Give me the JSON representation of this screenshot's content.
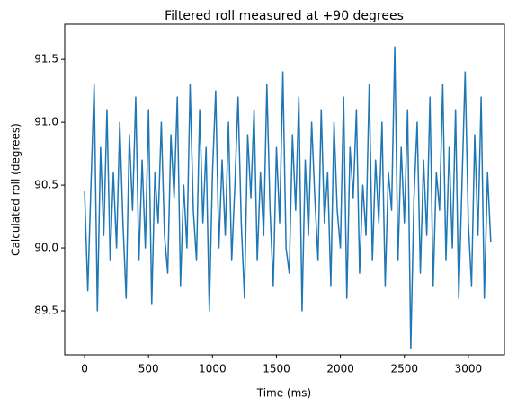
{
  "chart_data": {
    "type": "line",
    "title": "Filtered roll measured at +90 degrees",
    "xlabel": "Time (ms)",
    "ylabel": "Calculated roll (degrees)",
    "xlim": [
      -155,
      3282
    ],
    "ylim": [
      89.15,
      91.78
    ],
    "xticks": [
      0,
      500,
      1000,
      1500,
      2000,
      2500,
      3000
    ],
    "yticks": [
      89.5,
      {
        "value": 90.0,
        "label": "90.0"
      },
      90.5,
      {
        "value": 91.0,
        "label": "91.0"
      },
      91.5
    ],
    "x": [
      0,
      25,
      50,
      75,
      100,
      125,
      150,
      175,
      200,
      225,
      250,
      275,
      300,
      325,
      350,
      375,
      400,
      425,
      450,
      475,
      500,
      525,
      550,
      575,
      600,
      625,
      650,
      675,
      700,
      725,
      750,
      775,
      800,
      825,
      850,
      875,
      900,
      925,
      950,
      975,
      1000,
      1025,
      1050,
      1075,
      1100,
      1125,
      1150,
      1175,
      1200,
      1225,
      1250,
      1275,
      1300,
      1325,
      1350,
      1375,
      1400,
      1425,
      1450,
      1475,
      1500,
      1525,
      1550,
      1575,
      1600,
      1625,
      1650,
      1675,
      1700,
      1725,
      1750,
      1775,
      1800,
      1825,
      1850,
      1875,
      1900,
      1925,
      1950,
      1975,
      2000,
      2025,
      2050,
      2075,
      2100,
      2125,
      2150,
      2175,
      2200,
      2225,
      2250,
      2275,
      2300,
      2325,
      2350,
      2375,
      2400,
      2425,
      2450,
      2475,
      2500,
      2525,
      2550,
      2575,
      2600,
      2625,
      2650,
      2675,
      2700,
      2725,
      2750,
      2775,
      2800,
      2825,
      2850,
      2875,
      2900,
      2925,
      2950,
      2975,
      3000,
      3025,
      3050,
      3075,
      3100,
      3125,
      3150,
      3175
    ],
    "series": [
      {
        "color": "#1f77b4",
        "values": [
          90.45,
          89.66,
          90.5,
          91.3,
          89.5,
          90.8,
          90.1,
          91.1,
          89.9,
          90.6,
          90.0,
          91.0,
          90.2,
          89.6,
          90.9,
          90.3,
          91.2,
          89.9,
          90.7,
          90.0,
          91.1,
          89.55,
          90.6,
          90.2,
          91.0,
          90.1,
          89.8,
          90.9,
          90.4,
          91.2,
          89.7,
          90.5,
          90.0,
          91.3,
          90.3,
          89.9,
          91.1,
          90.2,
          90.8,
          89.5,
          90.6,
          91.25,
          90.0,
          90.7,
          90.1,
          91.0,
          89.9,
          90.5,
          91.2,
          90.2,
          89.6,
          90.9,
          90.4,
          91.1,
          89.9,
          90.6,
          90.1,
          91.3,
          90.3,
          89.7,
          90.8,
          90.2,
          91.4,
          90.0,
          89.8,
          90.9,
          90.3,
          91.2,
          89.5,
          90.7,
          90.1,
          91.0,
          90.4,
          89.9,
          91.1,
          90.2,
          90.6,
          89.7,
          91.0,
          90.3,
          90.0,
          91.2,
          89.6,
          90.8,
          90.4,
          91.1,
          89.8,
          90.5,
          90.1,
          91.3,
          89.9,
          90.7,
          90.2,
          91.0,
          89.7,
          90.6,
          90.3,
          91.6,
          89.9,
          90.8,
          90.2,
          91.1,
          89.2,
          90.4,
          91.0,
          89.8,
          90.7,
          90.1,
          91.2,
          89.7,
          90.6,
          90.3,
          91.3,
          89.9,
          90.8,
          90.0,
          91.1,
          89.6,
          90.5,
          91.4,
          90.2,
          89.7,
          90.9,
          90.1,
          91.2,
          89.6,
          90.6,
          90.05
        ]
      }
    ]
  }
}
